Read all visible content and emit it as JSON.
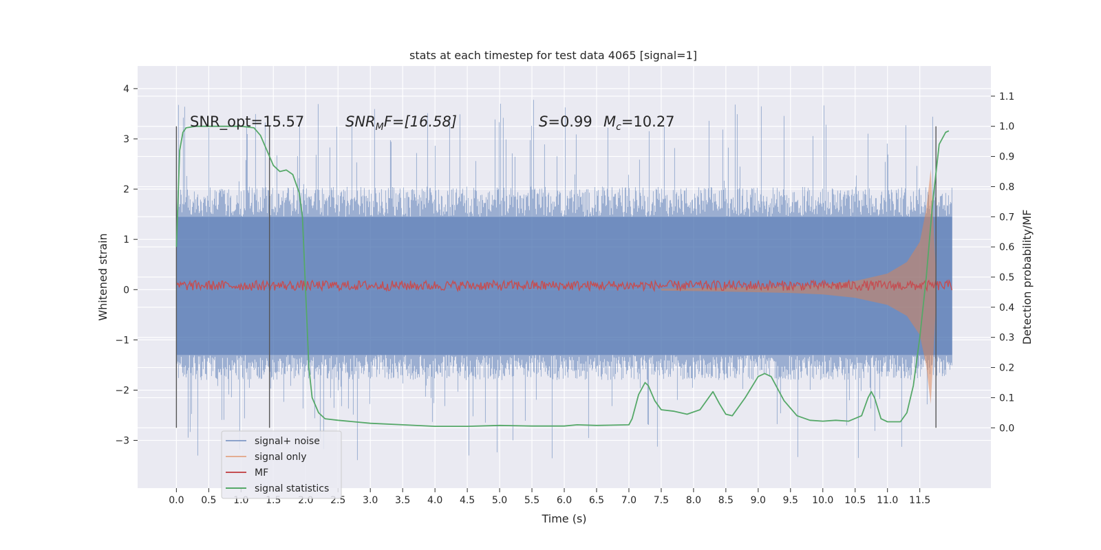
{
  "chart_data": {
    "type": "line",
    "title": "stats at each timestep for test data 4065 [signal=1]",
    "xlabel": "Time (s)",
    "ylabel": "Whitened strain",
    "y2label": "Detection probability/MF",
    "xlim": [
      -0.6,
      12.6
    ],
    "ylim": [
      -3.95,
      4.45
    ],
    "y2lim": [
      -0.2,
      1.2
    ],
    "grid": true,
    "legend_position": "lower-left",
    "x_ticks": [
      "0.0",
      "0.5",
      "1.0",
      "1.5",
      "2.0",
      "2.5",
      "3.0",
      "3.5",
      "4.0",
      "4.5",
      "5.0",
      "5.5",
      "6.0",
      "6.5",
      "7.0",
      "7.5",
      "8.0",
      "8.5",
      "9.0",
      "9.5",
      "10.0",
      "10.5",
      "11.0",
      "11.5"
    ],
    "y_ticks": [
      "4",
      "3",
      "2",
      "1",
      "0",
      "−1",
      "−2",
      "−3"
    ],
    "y2_ticks": [
      "1.1",
      "1.0",
      "0.9",
      "0.8",
      "0.7",
      "0.6",
      "0.5",
      "0.4",
      "0.3",
      "0.2",
      "0.1",
      "0.0"
    ],
    "annotations": {
      "snr_opt": "SNR_opt=15.57",
      "snr_mf_base": "SNR",
      "snr_mf_sub": "M",
      "snr_mf_rest": "F=[16.58]",
      "s_sym": "S",
      "s_val": "=0.99",
      "mc_sym": "M",
      "mc_sub": "c",
      "mc_val": "=10.27"
    },
    "vertical_markers_s": [
      0.0,
      1.44,
      11.75
    ],
    "series": [
      {
        "name": "signal+ noise",
        "color": "#4c72b0",
        "x_range": [
          0.0,
          12.0
        ],
        "core_envelope": [
          -1.3,
          1.45
        ],
        "approx_extremes": [
          -3.6,
          4.1
        ]
      },
      {
        "name": "signal only",
        "color": "#dd8452",
        "x_range": [
          7.5,
          11.75
        ],
        "envelope": [
          [
            7.5,
            0.02
          ],
          [
            8.5,
            0.04
          ],
          [
            9.5,
            0.07
          ],
          [
            10.0,
            0.1
          ],
          [
            10.5,
            0.17
          ],
          [
            11.0,
            0.32
          ],
          [
            11.3,
            0.55
          ],
          [
            11.5,
            0.95
          ],
          [
            11.6,
            1.6
          ],
          [
            11.67,
            2.4
          ],
          [
            11.75,
            0.3
          ]
        ]
      },
      {
        "name": "MF",
        "color": "#c44e52",
        "x_range": [
          0.0,
          12.0
        ],
        "level": 0.08,
        "amplitude": 0.1
      },
      {
        "name": "signal statistics",
        "color": "#55a868",
        "x": [
          0.0,
          0.05,
          0.1,
          0.15,
          0.3,
          0.6,
          1.0,
          1.2,
          1.3,
          1.4,
          1.5,
          1.6,
          1.7,
          1.8,
          1.9,
          1.95,
          2.0,
          2.05,
          2.1,
          2.2,
          2.3,
          2.5,
          3.0,
          3.5,
          4.0,
          4.5,
          5.0,
          5.5,
          6.0,
          6.2,
          6.5,
          7.0,
          7.05,
          7.15,
          7.25,
          7.3,
          7.4,
          7.5,
          7.7,
          7.9,
          8.1,
          8.3,
          8.4,
          8.5,
          8.6,
          8.8,
          9.0,
          9.1,
          9.2,
          9.4,
          9.6,
          9.8,
          10.0,
          10.2,
          10.4,
          10.6,
          10.7,
          10.75,
          10.8,
          10.9,
          11.0,
          11.2,
          11.3,
          11.4,
          11.5,
          11.6,
          11.7,
          11.8,
          11.9,
          11.95
        ],
        "y": [
          0.6,
          0.92,
          0.98,
          0.995,
          1.0,
          1.0,
          1.0,
          0.995,
          0.97,
          0.92,
          0.87,
          0.85,
          0.855,
          0.84,
          0.78,
          0.7,
          0.45,
          0.2,
          0.1,
          0.05,
          0.03,
          0.025,
          0.015,
          0.01,
          0.005,
          0.005,
          0.008,
          0.006,
          0.006,
          0.01,
          0.008,
          0.01,
          0.03,
          0.11,
          0.15,
          0.14,
          0.09,
          0.06,
          0.055,
          0.045,
          0.06,
          0.12,
          0.08,
          0.045,
          0.04,
          0.1,
          0.17,
          0.18,
          0.17,
          0.09,
          0.04,
          0.025,
          0.022,
          0.025,
          0.022,
          0.04,
          0.1,
          0.12,
          0.1,
          0.03,
          0.02,
          0.02,
          0.05,
          0.14,
          0.3,
          0.5,
          0.75,
          0.94,
          0.98,
          0.985
        ]
      }
    ]
  }
}
